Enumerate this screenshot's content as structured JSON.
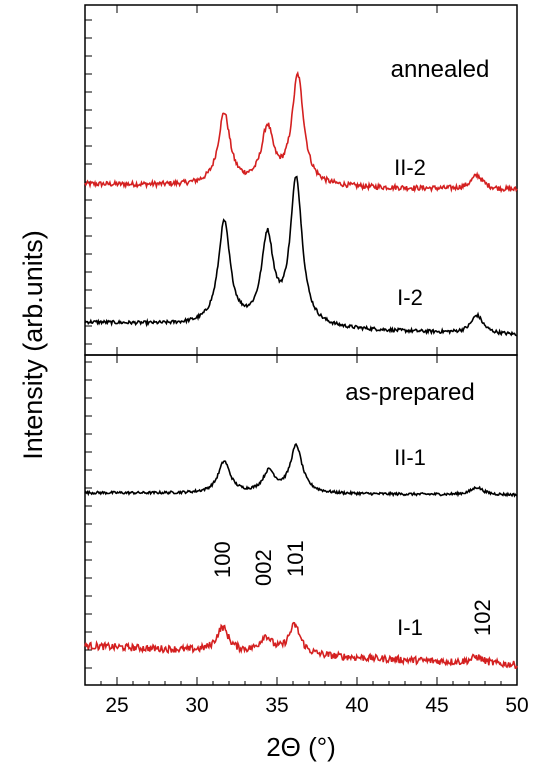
{
  "chart_data": {
    "type": "line",
    "xlabel": "2Θ (°)",
    "ylabel": "Intensity (arb.units)",
    "xlim": [
      23,
      50
    ],
    "x_ticks": [
      25,
      30,
      35,
      40,
      45,
      50
    ],
    "x_tick_labels": [
      "25",
      "30",
      "35",
      "40",
      "45",
      "50"
    ],
    "y_scale": "arbitrary, no numeric labels",
    "panels": [
      {
        "label": "annealed",
        "series": [
          "II-2",
          "I-2"
        ]
      },
      {
        "label": "as-prepared",
        "series": [
          "II-1",
          "I-1"
        ]
      }
    ],
    "series": [
      {
        "name": "II-2",
        "color": "#d42020",
        "baseline": 0.59,
        "slope": 0.05,
        "peaks": [
          [
            31.7,
            0.62
          ],
          [
            34.4,
            0.48
          ],
          [
            36.3,
            0.95
          ],
          [
            47.5,
            0.12
          ]
        ]
      },
      {
        "name": "I-2",
        "color": "#000000",
        "baseline": 0.25,
        "slope": 0.09,
        "peaks": [
          [
            31.7,
            0.73
          ],
          [
            34.4,
            0.62
          ],
          [
            36.2,
            1.05
          ],
          [
            47.5,
            0.13
          ]
        ]
      },
      {
        "name": "II-1",
        "color": "#000000",
        "baseline": 0.62,
        "slope": 0.02,
        "peaks": [
          [
            31.7,
            0.3
          ],
          [
            34.5,
            0.2
          ],
          [
            36.2,
            0.45
          ],
          [
            47.5,
            0.07
          ]
        ]
      },
      {
        "name": "I-1",
        "color": "#d42020",
        "baseline": 0.1,
        "slope": 0.12,
        "peaks": [
          [
            31.6,
            0.15
          ],
          [
            34.3,
            0.1
          ],
          [
            36.1,
            0.18
          ],
          [
            47.5,
            0.04
          ]
        ]
      }
    ],
    "annotations": [
      {
        "text": "100",
        "x": 31.6
      },
      {
        "text": "002",
        "x": 34.3
      },
      {
        "text": "101",
        "x": 36.1
      },
      {
        "text": "102",
        "x": 47.5
      }
    ]
  }
}
